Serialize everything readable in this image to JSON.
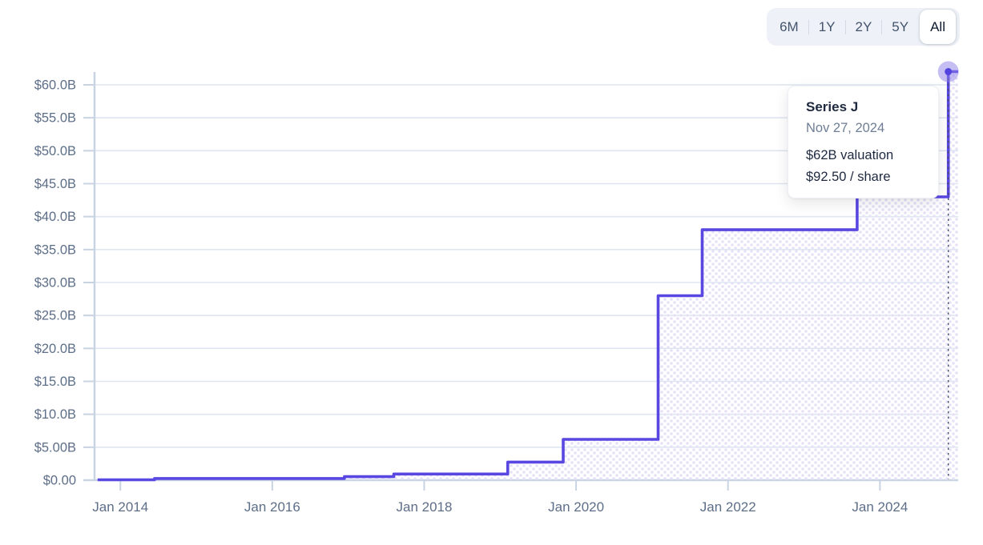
{
  "toolbar": {
    "items": [
      {
        "label": "6M",
        "selected": false
      },
      {
        "label": "1Y",
        "selected": false
      },
      {
        "label": "2Y",
        "selected": false
      },
      {
        "label": "5Y",
        "selected": false
      },
      {
        "label": "All",
        "selected": true
      }
    ]
  },
  "tooltip": {
    "title": "Series J",
    "date": "Nov 27, 2024",
    "valuation": "$62B valuation",
    "share_price": "$92.50 / share"
  },
  "colors": {
    "line": "#5947e1",
    "area_dot": "#e6e1f8",
    "halo": "#8b7de8",
    "marker": "#5343de",
    "grid": "#dee6f0",
    "axis": "#c9d4e2",
    "axis_text": "#5d6e88",
    "crosshair": "#434f63"
  },
  "chart_data": {
    "type": "area",
    "subtype": "step",
    "legend": "none",
    "grid": "horizontal",
    "x_axis": {
      "lim": [
        2013.66,
        2025.03
      ],
      "ticks": [
        {
          "year": 2014,
          "label": "Jan 2014"
        },
        {
          "year": 2016,
          "label": "Jan 2016"
        },
        {
          "year": 2018,
          "label": "Jan 2018"
        },
        {
          "year": 2020,
          "label": "Jan 2020"
        },
        {
          "year": 2022,
          "label": "Jan 2022"
        },
        {
          "year": 2024,
          "label": "Jan 2024"
        }
      ]
    },
    "y_axis": {
      "lim": [
        0,
        60
      ],
      "ticks": [
        {
          "value": 0,
          "label": "$0.00"
        },
        {
          "value": 5,
          "label": "$5.00B"
        },
        {
          "value": 10,
          "label": "$10.0B"
        },
        {
          "value": 15,
          "label": "$15.0B"
        },
        {
          "value": 20,
          "label": "$20.0B"
        },
        {
          "value": 25,
          "label": "$25.0B"
        },
        {
          "value": 30,
          "label": "$30.0B"
        },
        {
          "value": 35,
          "label": "$35.0B"
        },
        {
          "value": 40,
          "label": "$40.0B"
        },
        {
          "value": 45,
          "label": "$45.0B"
        },
        {
          "value": 50,
          "label": "$50.0B"
        },
        {
          "value": 55,
          "label": "$55.0B"
        },
        {
          "value": 60,
          "label": "$60.0B"
        }
      ]
    },
    "series": [
      {
        "name": "valuation_billions_usd",
        "points": [
          {
            "x": 2013.7,
            "y": 0.06
          },
          {
            "x": 2014.45,
            "y": 0.25
          },
          {
            "x": 2016.95,
            "y": 0.53
          },
          {
            "x": 2017.6,
            "y": 0.94
          },
          {
            "x": 2019.1,
            "y": 2.75
          },
          {
            "x": 2019.83,
            "y": 6.2
          },
          {
            "x": 2021.08,
            "y": 28
          },
          {
            "x": 2021.66,
            "y": 38
          },
          {
            "x": 2023.7,
            "y": 43
          },
          {
            "x": 2024.9,
            "y": 62
          }
        ],
        "end_x": 2025.03
      }
    ],
    "highlight": {
      "x": 2024.9,
      "y": 62,
      "crosshair": true
    }
  }
}
